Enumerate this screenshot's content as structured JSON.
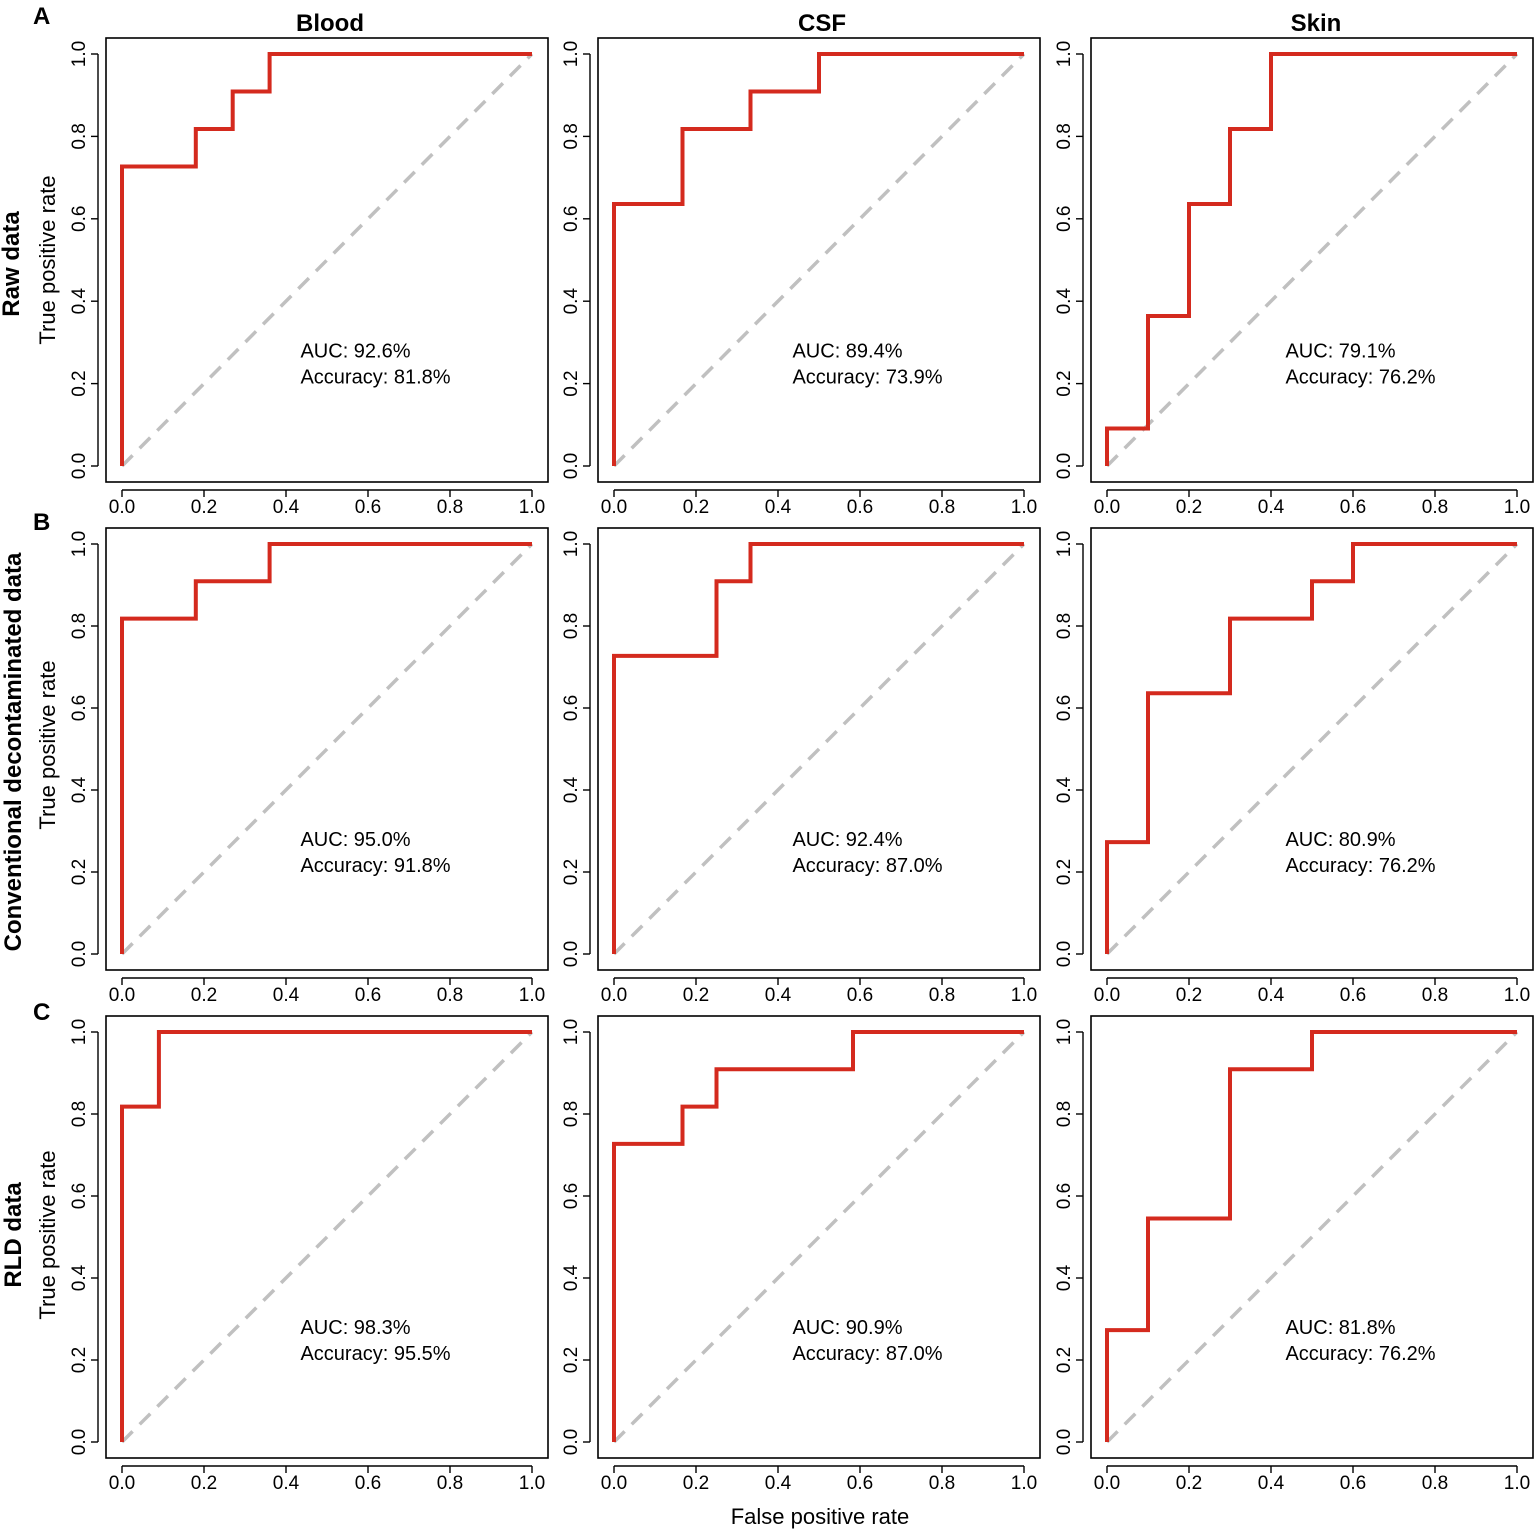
{
  "figure": {
    "x_axis_title": "False positive rate",
    "y_axis_title": "True positive rate",
    "column_titles": [
      "Blood",
      "CSF",
      "Skin"
    ],
    "row_titles": [
      "Raw data",
      "Conventional decontaminated data",
      "RLD data"
    ],
    "panel_letters": [
      "A",
      "B",
      "C"
    ],
    "colors": {
      "roc": "#d42a1e",
      "diagonal": "#c0c0c0",
      "axis": "#000000"
    }
  },
  "chart_data": [
    {
      "type": "line",
      "title": "Blood",
      "row": "Raw data",
      "panel": "A",
      "xlabel": "",
      "ylabel": "True positive rate",
      "xlim": [
        0,
        1
      ],
      "ylim": [
        0,
        1
      ],
      "ticks": [
        "0.0",
        "0.2",
        "0.4",
        "0.6",
        "0.8",
        "1.0"
      ],
      "x": [
        0,
        0,
        0.18,
        0.18,
        0.27,
        0.27,
        0.36,
        0.36,
        1.0
      ],
      "y": [
        0,
        0.727,
        0.727,
        0.818,
        0.818,
        0.909,
        0.909,
        1.0,
        1.0
      ],
      "auc": "AUC: 92.6%",
      "accuracy": "Accuracy: 81.8%"
    },
    {
      "type": "line",
      "title": "CSF",
      "row": "Raw data",
      "panel": "A",
      "xlabel": "",
      "ylabel": "",
      "xlim": [
        0,
        1
      ],
      "ylim": [
        0,
        1
      ],
      "ticks": [
        "0.0",
        "0.2",
        "0.4",
        "0.6",
        "0.8",
        "1.0"
      ],
      "x": [
        0,
        0,
        0.167,
        0.167,
        0.333,
        0.333,
        0.5,
        0.5,
        1.0
      ],
      "y": [
        0,
        0.636,
        0.636,
        0.818,
        0.818,
        0.909,
        0.909,
        1.0,
        1.0
      ],
      "auc": "AUC: 89.4%",
      "accuracy": "Accuracy: 73.9%"
    },
    {
      "type": "line",
      "title": "Skin",
      "row": "Raw data",
      "panel": "A",
      "xlabel": "",
      "ylabel": "",
      "xlim": [
        0,
        1
      ],
      "ylim": [
        0,
        1
      ],
      "ticks": [
        "0.0",
        "0.2",
        "0.4",
        "0.6",
        "0.8",
        "1.0"
      ],
      "x": [
        0,
        0,
        0.1,
        0.1,
        0.2,
        0.2,
        0.3,
        0.3,
        0.4,
        0.4,
        1.0
      ],
      "y": [
        0,
        0.091,
        0.091,
        0.364,
        0.364,
        0.636,
        0.636,
        0.818,
        0.818,
        1.0,
        1.0
      ],
      "auc": "AUC: 79.1%",
      "accuracy": "Accuracy: 76.2%"
    },
    {
      "type": "line",
      "title": "",
      "row": "Conventional decontaminated data",
      "panel": "B",
      "xlabel": "",
      "ylabel": "True positive rate",
      "xlim": [
        0,
        1
      ],
      "ylim": [
        0,
        1
      ],
      "ticks": [
        "0.0",
        "0.2",
        "0.4",
        "0.6",
        "0.8",
        "1.0"
      ],
      "x": [
        0,
        0,
        0.18,
        0.18,
        0.36,
        0.36,
        1.0
      ],
      "y": [
        0,
        0.818,
        0.818,
        0.909,
        0.909,
        1.0,
        1.0
      ],
      "auc": "AUC: 95.0%",
      "accuracy": "Accuracy: 91.8%"
    },
    {
      "type": "line",
      "title": "",
      "row": "Conventional decontaminated data",
      "panel": "B",
      "xlabel": "",
      "ylabel": "",
      "xlim": [
        0,
        1
      ],
      "ylim": [
        0,
        1
      ],
      "ticks": [
        "0.0",
        "0.2",
        "0.4",
        "0.6",
        "0.8",
        "1.0"
      ],
      "x": [
        0,
        0,
        0.25,
        0.25,
        0.333,
        0.333,
        1.0
      ],
      "y": [
        0,
        0.727,
        0.727,
        0.909,
        0.909,
        1.0,
        1.0
      ],
      "auc": "AUC: 92.4%",
      "accuracy": "Accuracy: 87.0%"
    },
    {
      "type": "line",
      "title": "",
      "row": "Conventional decontaminated data",
      "panel": "B",
      "xlabel": "",
      "ylabel": "",
      "xlim": [
        0,
        1
      ],
      "ylim": [
        0,
        1
      ],
      "ticks": [
        "0.0",
        "0.2",
        "0.4",
        "0.6",
        "0.8",
        "1.0"
      ],
      "x": [
        0,
        0,
        0.1,
        0.1,
        0.3,
        0.3,
        0.5,
        0.5,
        0.6,
        0.6,
        1.0
      ],
      "y": [
        0,
        0.273,
        0.273,
        0.636,
        0.636,
        0.818,
        0.818,
        0.909,
        0.909,
        1.0,
        1.0
      ],
      "auc": "AUC: 80.9%",
      "accuracy": "Accuracy: 76.2%"
    },
    {
      "type": "line",
      "title": "",
      "row": "RLD data",
      "panel": "C",
      "xlabel": "",
      "ylabel": "True positive rate",
      "xlim": [
        0,
        1
      ],
      "ylim": [
        0,
        1
      ],
      "ticks": [
        "0.0",
        "0.2",
        "0.4",
        "0.6",
        "0.8",
        "1.0"
      ],
      "x": [
        0,
        0,
        0.09,
        0.09,
        1.0
      ],
      "y": [
        0,
        0.818,
        0.818,
        1.0,
        1.0
      ],
      "auc": "AUC: 98.3%",
      "accuracy": "Accuracy: 95.5%"
    },
    {
      "type": "line",
      "title": "",
      "row": "RLD data",
      "panel": "C",
      "xlabel": "False positive rate",
      "ylabel": "",
      "xlim": [
        0,
        1
      ],
      "ylim": [
        0,
        1
      ],
      "ticks": [
        "0.0",
        "0.2",
        "0.4",
        "0.6",
        "0.8",
        "1.0"
      ],
      "x": [
        0,
        0,
        0.167,
        0.167,
        0.25,
        0.25,
        0.583,
        0.583,
        1.0
      ],
      "y": [
        0,
        0.727,
        0.727,
        0.818,
        0.818,
        0.909,
        0.909,
        1.0,
        1.0
      ],
      "auc": "AUC: 90.9%",
      "accuracy": "Accuracy: 87.0%"
    },
    {
      "type": "line",
      "title": "",
      "row": "RLD data",
      "panel": "C",
      "xlabel": "",
      "ylabel": "",
      "xlim": [
        0,
        1
      ],
      "ylim": [
        0,
        1
      ],
      "ticks": [
        "0.0",
        "0.2",
        "0.4",
        "0.6",
        "0.8",
        "1.0"
      ],
      "x": [
        0,
        0,
        0.1,
        0.1,
        0.3,
        0.3,
        0.5,
        0.5,
        1.0
      ],
      "y": [
        0,
        0.273,
        0.273,
        0.545,
        0.545,
        0.909,
        0.909,
        1.0,
        1.0
      ],
      "auc": "AUC: 81.8%",
      "accuracy": "Accuracy: 76.2%"
    }
  ]
}
